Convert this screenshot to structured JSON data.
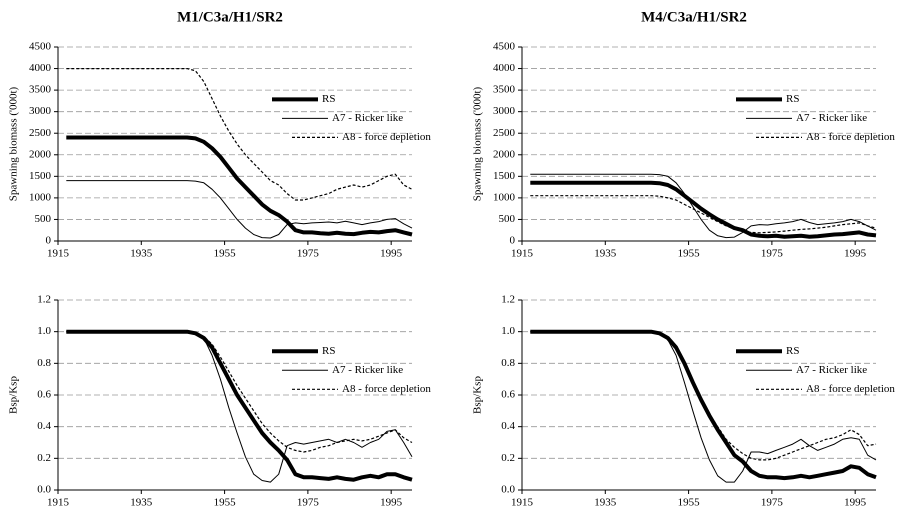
{
  "chart_data": [
    {
      "type": "line",
      "title": "M1/C3a/H1/SR2",
      "ylabel": "Spawning biomass ('000t)",
      "x": [
        1917,
        1946,
        1948,
        1950,
        1952,
        1954,
        1956,
        1958,
        1960,
        1962,
        1964,
        1966,
        1968,
        1970,
        1972,
        1974,
        1976,
        1978,
        1980,
        1982,
        1984,
        1986,
        1988,
        1990,
        1992,
        1994,
        1996,
        1998,
        2000
      ],
      "series": [
        {
          "name": "RS",
          "color": "#000000",
          "linestyle": "solid",
          "linewidth": 4,
          "values": [
            2400,
            2400,
            2380,
            2300,
            2150,
            1950,
            1700,
            1450,
            1250,
            1050,
            850,
            700,
            600,
            450,
            250,
            200,
            200,
            180,
            170,
            190,
            170,
            160,
            190,
            210,
            200,
            230,
            250,
            200,
            150
          ]
        },
        {
          "name": "A7 - Ricker like",
          "color": "#000000",
          "linestyle": "solid",
          "linewidth": 1,
          "values": [
            1400,
            1400,
            1390,
            1350,
            1200,
            1000,
            750,
            500,
            300,
            150,
            80,
            70,
            150,
            380,
            420,
            400,
            420,
            430,
            440,
            420,
            460,
            420,
            380,
            420,
            450,
            500,
            520,
            400,
            300
          ]
        },
        {
          "name": "A8 - force depletion",
          "color": "#000000",
          "linestyle": "dashed",
          "linewidth": 1.2,
          "values": [
            4000,
            4000,
            3950,
            3700,
            3300,
            2900,
            2550,
            2250,
            2000,
            1800,
            1600,
            1400,
            1300,
            1100,
            950,
            950,
            1000,
            1050,
            1100,
            1200,
            1250,
            1300,
            1250,
            1300,
            1400,
            1500,
            1550,
            1300,
            1200
          ]
        }
      ],
      "xlim": [
        1915,
        2000
      ],
      "xticks": [
        1915,
        1935,
        1955,
        1975,
        1995
      ],
      "ylim": [
        0,
        4500
      ],
      "yticks": [
        0,
        500,
        1000,
        1500,
        2000,
        2500,
        3000,
        3500,
        4000,
        4500
      ],
      "grid": true,
      "legend": "upper right"
    },
    {
      "type": "line",
      "title": "M4/C3a/H1/SR2",
      "ylabel": "Spawning biomass ('000t)",
      "x": [
        1917,
        1946,
        1948,
        1950,
        1952,
        1954,
        1956,
        1958,
        1960,
        1962,
        1964,
        1966,
        1968,
        1970,
        1972,
        1974,
        1976,
        1978,
        1980,
        1982,
        1984,
        1986,
        1988,
        1990,
        1992,
        1994,
        1996,
        1998,
        2000
      ],
      "series": [
        {
          "name": "RS",
          "color": "#000000",
          "linestyle": "solid",
          "linewidth": 4,
          "values": [
            1350,
            1350,
            1340,
            1300,
            1200,
            1050,
            900,
            750,
            620,
            500,
            400,
            300,
            250,
            150,
            120,
            110,
            120,
            100,
            110,
            120,
            100,
            110,
            130,
            150,
            160,
            180,
            200,
            150,
            130
          ]
        },
        {
          "name": "A7 - Ricker like",
          "color": "#000000",
          "linestyle": "solid",
          "linewidth": 1,
          "values": [
            1550,
            1550,
            1540,
            1500,
            1350,
            1100,
            800,
            500,
            250,
            120,
            80,
            90,
            200,
            350,
            380,
            370,
            400,
            420,
            450,
            500,
            430,
            380,
            400,
            420,
            450,
            500,
            450,
            350,
            250
          ]
        },
        {
          "name": "A8 - force depletion",
          "color": "#000000",
          "linestyle": "dashed",
          "linewidth": 1.2,
          "values": [
            1050,
            1050,
            1040,
            1000,
            950,
            850,
            750,
            650,
            550,
            450,
            350,
            280,
            230,
            200,
            190,
            200,
            210,
            230,
            250,
            270,
            280,
            300,
            320,
            350,
            380,
            400,
            420,
            350,
            300
          ]
        }
      ],
      "xlim": [
        1915,
        2000
      ],
      "xticks": [
        1915,
        1935,
        1955,
        1975,
        1995
      ],
      "ylim": [
        0,
        4500
      ],
      "yticks": [
        0,
        500,
        1000,
        1500,
        2000,
        2500,
        3000,
        3500,
        4000,
        4500
      ],
      "grid": true,
      "legend": "upper right"
    },
    {
      "type": "line",
      "ylabel": "Bsp/Ksp",
      "x": [
        1917,
        1946,
        1948,
        1950,
        1952,
        1954,
        1956,
        1958,
        1960,
        1962,
        1964,
        1966,
        1968,
        1970,
        1972,
        1974,
        1976,
        1978,
        1980,
        1982,
        1984,
        1986,
        1988,
        1990,
        1992,
        1994,
        1996,
        1998,
        2000
      ],
      "series": [
        {
          "name": "RS",
          "color": "#000000",
          "linestyle": "solid",
          "linewidth": 4,
          "values": [
            1,
            1,
            0.99,
            0.96,
            0.9,
            0.8,
            0.7,
            0.6,
            0.52,
            0.44,
            0.36,
            0.3,
            0.25,
            0.19,
            0.1,
            0.08,
            0.08,
            0.075,
            0.07,
            0.08,
            0.07,
            0.065,
            0.08,
            0.09,
            0.08,
            0.1,
            0.1,
            0.08,
            0.065
          ]
        },
        {
          "name": "A7 - Ricker like",
          "color": "#000000",
          "linestyle": "solid",
          "linewidth": 1,
          "values": [
            1,
            1,
            0.99,
            0.96,
            0.85,
            0.7,
            0.52,
            0.36,
            0.21,
            0.1,
            0.06,
            0.05,
            0.1,
            0.28,
            0.3,
            0.29,
            0.3,
            0.31,
            0.32,
            0.3,
            0.32,
            0.3,
            0.27,
            0.3,
            0.32,
            0.37,
            0.38,
            0.3,
            0.21
          ]
        },
        {
          "name": "A8 - force depletion",
          "color": "#000000",
          "linestyle": "dashed",
          "linewidth": 1.2,
          "values": [
            1,
            1,
            0.99,
            0.97,
            0.92,
            0.84,
            0.75,
            0.66,
            0.58,
            0.5,
            0.42,
            0.36,
            0.31,
            0.27,
            0.25,
            0.24,
            0.25,
            0.27,
            0.28,
            0.3,
            0.31,
            0.32,
            0.31,
            0.32,
            0.34,
            0.36,
            0.38,
            0.33,
            0.3
          ]
        }
      ],
      "xlim": [
        1915,
        2000
      ],
      "xticks": [
        1915,
        1935,
        1955,
        1975,
        1995
      ],
      "ylim": [
        0,
        1.2
      ],
      "yticks": [
        {
          "value": 0,
          "label": "0.0"
        },
        0.2,
        0.4,
        0.6,
        0.8,
        {
          "value": 1,
          "label": "1.0"
        },
        1.2
      ],
      "grid": true,
      "legend": "upper right"
    },
    {
      "type": "line",
      "ylabel": "Bsp/Ksp",
      "x": [
        1917,
        1946,
        1948,
        1950,
        1952,
        1954,
        1956,
        1958,
        1960,
        1962,
        1964,
        1966,
        1968,
        1970,
        1972,
        1974,
        1976,
        1978,
        1980,
        1982,
        1984,
        1986,
        1988,
        1990,
        1992,
        1994,
        1996,
        1998,
        2000
      ],
      "series": [
        {
          "name": "RS",
          "color": "#000000",
          "linestyle": "solid",
          "linewidth": 4,
          "values": [
            1,
            1,
            0.99,
            0.96,
            0.9,
            0.8,
            0.68,
            0.57,
            0.47,
            0.38,
            0.3,
            0.22,
            0.18,
            0.12,
            0.09,
            0.08,
            0.08,
            0.075,
            0.08,
            0.09,
            0.08,
            0.09,
            0.1,
            0.11,
            0.12,
            0.15,
            0.14,
            0.1,
            0.08
          ]
        },
        {
          "name": "A7 - Ricker like",
          "color": "#000000",
          "linestyle": "solid",
          "linewidth": 1,
          "values": [
            1,
            1,
            0.99,
            0.95,
            0.85,
            0.68,
            0.5,
            0.33,
            0.19,
            0.09,
            0.05,
            0.05,
            0.12,
            0.24,
            0.24,
            0.23,
            0.25,
            0.27,
            0.29,
            0.32,
            0.28,
            0.25,
            0.27,
            0.29,
            0.32,
            0.33,
            0.32,
            0.22,
            0.19
          ]
        },
        {
          "name": "A8 - force depletion",
          "color": "#000000",
          "linestyle": "dashed",
          "linewidth": 1.2,
          "values": [
            1,
            1,
            0.99,
            0.96,
            0.9,
            0.8,
            0.69,
            0.58,
            0.48,
            0.4,
            0.32,
            0.27,
            0.23,
            0.2,
            0.19,
            0.19,
            0.2,
            0.22,
            0.24,
            0.26,
            0.28,
            0.3,
            0.32,
            0.33,
            0.35,
            0.38,
            0.35,
            0.28,
            0.29
          ]
        }
      ],
      "xlim": [
        1915,
        2000
      ],
      "xticks": [
        1915,
        1935,
        1955,
        1975,
        1995
      ],
      "ylim": [
        0,
        1.2
      ],
      "yticks": [
        {
          "value": 0,
          "label": "0.0"
        },
        0.2,
        0.4,
        0.6,
        0.8,
        {
          "value": 1,
          "label": "1.0"
        },
        1.2
      ],
      "grid": true,
      "legend": "upper right"
    }
  ]
}
